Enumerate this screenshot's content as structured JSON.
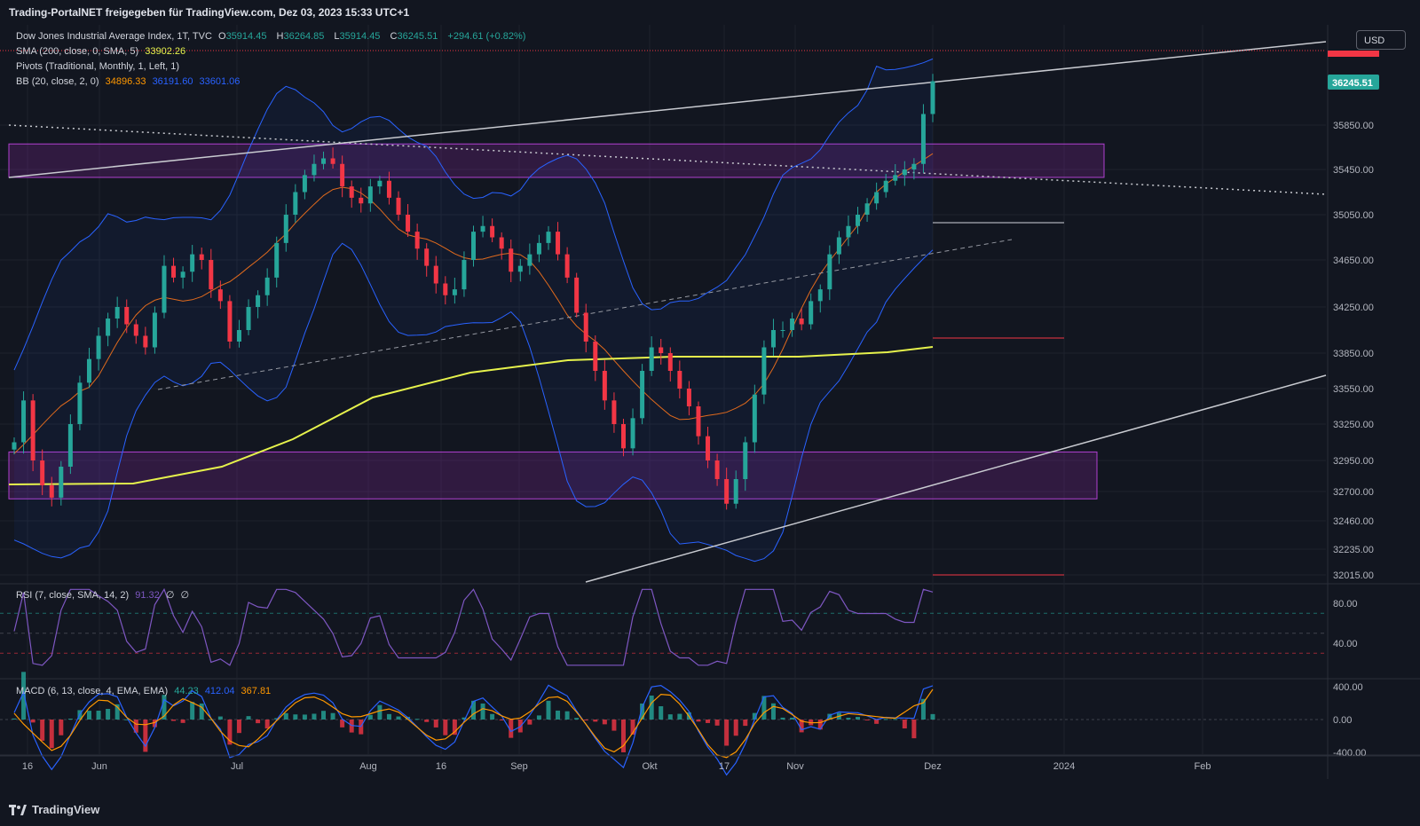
{
  "header": {
    "attribution": "Trading-PortalNET freigegeben für TradingView.com, Dez 03, 2023 15:33 UTC+1"
  },
  "legend": {
    "symbol": "Dow Jones Industrial Average Index, 1T, TVC",
    "o_label": "O",
    "o": "35914.45",
    "h_label": "H",
    "h": "36264.85",
    "l_label": "L",
    "l": "35914.45",
    "c_label": "C",
    "c": "36245.51",
    "change": "+294.61 (+0.82%)",
    "sma_label": "SMA (200, close, 0, SMA, 5)",
    "sma_value": "33902.26",
    "pivots_label": "Pivots (Traditional, Monthly, 1, Left, 1)",
    "bb_label": "BB (20, close, 2, 0)",
    "bb_basis": "34896.33",
    "bb_upper": "36191.60",
    "bb_lower": "33601.06"
  },
  "currency": "USD",
  "rsi_legend": {
    "label": "RSI (7, close, SMA, 14, 2)",
    "value": "91.32",
    "extra1": "∅",
    "extra2": "∅"
  },
  "macd_legend": {
    "label": "MACD (6, 13, close, 4, EMA, EMA)",
    "hist": "44.23",
    "macd": "412.04",
    "signal": "367.81"
  },
  "colors": {
    "bg": "#121620",
    "up": "#26a69a",
    "down": "#f23645",
    "sma": "#e6f24c",
    "bb": "#2962ff",
    "bb_basis": "#e06a1d",
    "rsi": "#7e57c2",
    "zone": "#9c27b0"
  },
  "branding": "TradingView",
  "chart_data": [
    {
      "type": "candlestick",
      "title": "Dow Jones Industrial Average Index, 1T, TVC",
      "y_axis_ticks": [
        35850,
        35450,
        35050,
        34650,
        34250,
        33850,
        33550,
        33250,
        32950,
        32700,
        32460,
        32235,
        32015
      ],
      "y_axis_labels": [
        "35850.00",
        "35450.00",
        "35050.00",
        "34650.00",
        "34250.00",
        "33850.00",
        "33550.00",
        "33250.00",
        "32950.00",
        "32700.00",
        "32460.00",
        "32235.00",
        "32015.00"
      ],
      "last_price_label": "36245.51",
      "x_axis_labels": [
        "16",
        "Jun",
        "Jul",
        "Aug",
        "16",
        "Sep",
        "Okt",
        "17",
        "Nov",
        "Dez",
        "2024",
        "Feb"
      ],
      "ohlc_close_path": [
        33100,
        33450,
        32950,
        32750,
        32650,
        32900,
        33250,
        33600,
        33800,
        34000,
        34150,
        34250,
        34100,
        34000,
        33900,
        34200,
        34600,
        34500,
        34550,
        34700,
        34650,
        34400,
        34300,
        33950,
        34050,
        34250,
        34350,
        34500,
        34800,
        35050,
        35250,
        35400,
        35500,
        35550,
        35500,
        35300,
        35200,
        35150,
        35300,
        35350,
        35200,
        35050,
        34900,
        34750,
        34600,
        34450,
        34350,
        34400,
        34650,
        34900,
        34950,
        34850,
        34750,
        34550,
        34600,
        34700,
        34800,
        34900,
        34700,
        34500,
        34200,
        33950,
        33700,
        33450,
        33250,
        33050,
        33300,
        33700,
        33900,
        33850,
        33700,
        33550,
        33400,
        33150,
        32950,
        32800,
        32600,
        32800,
        33100,
        33500,
        33900,
        34050,
        34050,
        34150,
        34100,
        34300,
        34400,
        34700,
        34850,
        34950,
        35050,
        35150,
        35250,
        35350,
        35400,
        35450,
        35500,
        35950,
        36245.51
      ],
      "sma200": 33902.26,
      "bollinger": {
        "basis": 34896.33,
        "upper": 36191.6,
        "lower": 33601.06
      },
      "zones": [
        {
          "from": 35380,
          "to": 35680
        },
        {
          "from": 32640,
          "to": 33020
        }
      ],
      "pivot_levels": [
        35020,
        33970,
        32000
      ]
    },
    {
      "type": "line",
      "title": "RSI (7, close, SMA, 14, 2)",
      "y_axis_labels": [
        "80.00",
        "40.00"
      ],
      "levels": [
        70,
        50,
        30
      ],
      "last_value": 91.32
    },
    {
      "type": "bar",
      "title": "MACD (6, 13, close, 4, EMA, EMA)",
      "y_axis_labels": [
        "400.00",
        "0.00",
        "-400.00"
      ],
      "histogram_last": 44.23,
      "macd_last": 412.04,
      "signal_last": 367.81
    }
  ]
}
